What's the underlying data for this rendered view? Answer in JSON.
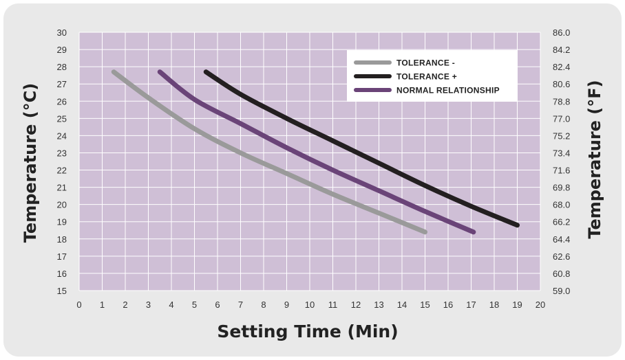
{
  "chart_data": {
    "type": "line",
    "xlabel": "Setting Time (Min)",
    "ylabel_left": "Temperature (°C)",
    "ylabel_right": "Temperature (°F)",
    "xlim": [
      0,
      20
    ],
    "ylim": [
      15,
      30
    ],
    "x_ticks": [
      "0",
      "1",
      "2",
      "3",
      "4",
      "5",
      "6",
      "7",
      "8",
      "9",
      "10",
      "11",
      "12",
      "13",
      "14",
      "15",
      "16",
      "17",
      "18",
      "19",
      "20"
    ],
    "y_ticks_left": [
      "15",
      "16",
      "17",
      "18",
      "19",
      "20",
      "21",
      "22",
      "23",
      "24",
      "25",
      "26",
      "27",
      "28",
      "29",
      "30"
    ],
    "y_ticks_right": [
      "59.0",
      "60.8",
      "62.6",
      "64.4",
      "66.2",
      "68.0",
      "69.8",
      "71.6",
      "73.4",
      "75.2",
      "77.0",
      "78.8",
      "80.6",
      "82.4",
      "84.2",
      "86.0"
    ],
    "grid": true,
    "legend_position": "top-right",
    "series": [
      {
        "name": "TOLERANCE -",
        "color": "#9a9a9a",
        "points": [
          [
            1.5,
            27.7
          ],
          [
            3,
            26.2
          ],
          [
            5,
            24.4
          ],
          [
            7,
            23.0
          ],
          [
            9,
            21.8
          ],
          [
            11,
            20.6
          ],
          [
            13,
            19.5
          ],
          [
            15,
            18.4
          ]
        ]
      },
      {
        "name": "TOLERANCE +",
        "color": "#231f20",
        "points": [
          [
            5.5,
            27.7
          ],
          [
            7,
            26.4
          ],
          [
            9,
            25.0
          ],
          [
            11,
            23.7
          ],
          [
            13,
            22.4
          ],
          [
            15,
            21.1
          ],
          [
            17,
            19.9
          ],
          [
            19,
            18.8
          ]
        ]
      },
      {
        "name": "NORMAL RELATIONSHIP",
        "color": "#6a4478",
        "points": [
          [
            3.5,
            27.7
          ],
          [
            5,
            26.1
          ],
          [
            7,
            24.7
          ],
          [
            9,
            23.3
          ],
          [
            11,
            22.0
          ],
          [
            13,
            20.8
          ],
          [
            15,
            19.6
          ],
          [
            17.1,
            18.4
          ]
        ]
      }
    ]
  },
  "colors": {
    "plot_background": "#cfbfd6",
    "gridline": "#ffffff",
    "card_background": "#e9e9e9"
  }
}
